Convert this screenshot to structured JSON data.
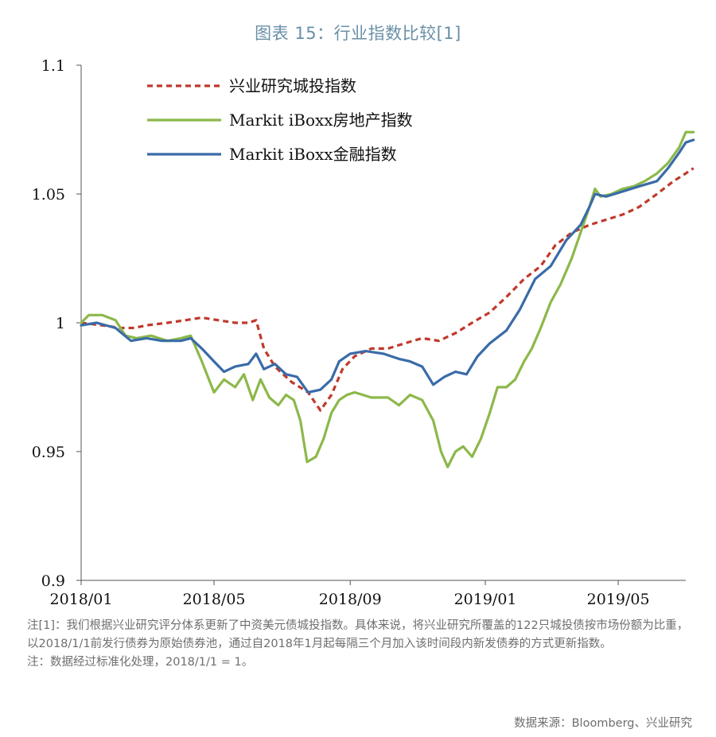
{
  "figure": {
    "title": "图表 15：行业指数比较[1]",
    "note1": "注[1]：我们根据兴业研究评分体系更新了中资美元债城投指数。具体来说，将兴业研究所覆盖的122只城投债按市场份额为比重，以2018/1/1前发行债券为原始债券池，通过自2018年1月起每隔三个月加入该时间段内新发债券的方式更新指数。",
    "note2": "注：数据经过标准化处理，2018/1/1 = 1。",
    "source": "数据来源：Bloomberg、兴业研究"
  },
  "chart_data": {
    "type": "line",
    "x_unit": "month",
    "xlim": [
      "2018-01",
      "2019-07"
    ],
    "x_ticks": [
      "2018-01",
      "2018-05",
      "2018-09",
      "2019-01",
      "2019-05"
    ],
    "x_tick_labels": [
      "2018/01",
      "2018/05",
      "2018/09",
      "2019/01",
      "2019/05"
    ],
    "ylim": [
      0.9,
      1.1
    ],
    "y_ticks": [
      0.9,
      0.95,
      1.0,
      1.05,
      1.1
    ],
    "y_tick_labels": [
      "0.9",
      "0.95",
      "1",
      "1.05",
      "1.1"
    ],
    "grid": false,
    "legend_position": "top-left",
    "series": [
      {
        "name": "兴业研究城投指数",
        "color": "#c0392b",
        "dash": true,
        "points": [
          [
            "2018-01-01",
            1.0
          ],
          [
            "2018-01-20",
            0.999
          ],
          [
            "2018-02-05",
            0.998
          ],
          [
            "2018-02-18",
            0.998
          ],
          [
            "2018-03-01",
            0.999
          ],
          [
            "2018-03-20",
            1.0
          ],
          [
            "2018-04-05",
            1.001
          ],
          [
            "2018-04-20",
            1.002
          ],
          [
            "2018-05-05",
            1.001
          ],
          [
            "2018-05-20",
            1.0
          ],
          [
            "2018-06-01",
            1.0
          ],
          [
            "2018-06-08",
            1.001
          ],
          [
            "2018-06-15",
            0.99
          ],
          [
            "2018-06-25",
            0.983
          ],
          [
            "2018-07-10",
            0.977
          ],
          [
            "2018-07-25",
            0.973
          ],
          [
            "2018-08-05",
            0.966
          ],
          [
            "2018-08-15",
            0.972
          ],
          [
            "2018-08-25",
            0.982
          ],
          [
            "2018-09-05",
            0.987
          ],
          [
            "2018-09-20",
            0.99
          ],
          [
            "2018-10-05",
            0.99
          ],
          [
            "2018-10-20",
            0.992
          ],
          [
            "2018-11-05",
            0.994
          ],
          [
            "2018-11-20",
            0.993
          ],
          [
            "2018-12-05",
            0.996
          ],
          [
            "2018-12-20",
            1.0
          ],
          [
            "2019-01-05",
            1.004
          ],
          [
            "2019-01-20",
            1.01
          ],
          [
            "2019-02-05",
            1.017
          ],
          [
            "2019-02-20",
            1.022
          ],
          [
            "2019-03-05",
            1.03
          ],
          [
            "2019-03-20",
            1.035
          ],
          [
            "2019-04-05",
            1.038
          ],
          [
            "2019-04-20",
            1.04
          ],
          [
            "2019-05-05",
            1.042
          ],
          [
            "2019-05-20",
            1.045
          ],
          [
            "2019-06-05",
            1.05
          ],
          [
            "2019-06-20",
            1.055
          ],
          [
            "2019-07-01",
            1.058
          ],
          [
            "2019-07-08",
            1.06
          ]
        ]
      },
      {
        "name": "Markit iBoxx房地产指数",
        "color": "#8cb84a",
        "dash": false,
        "points": [
          [
            "2018-01-01",
            1.0
          ],
          [
            "2018-01-08",
            1.003
          ],
          [
            "2018-01-20",
            1.003
          ],
          [
            "2018-02-01",
            1.001
          ],
          [
            "2018-02-10",
            0.995
          ],
          [
            "2018-02-20",
            0.994
          ],
          [
            "2018-03-05",
            0.995
          ],
          [
            "2018-03-20",
            0.993
          ],
          [
            "2018-04-01",
            0.994
          ],
          [
            "2018-04-10",
            0.995
          ],
          [
            "2018-04-20",
            0.985
          ],
          [
            "2018-05-01",
            0.973
          ],
          [
            "2018-05-10",
            0.978
          ],
          [
            "2018-05-20",
            0.975
          ],
          [
            "2018-05-28",
            0.98
          ],
          [
            "2018-06-05",
            0.97
          ],
          [
            "2018-06-12",
            0.978
          ],
          [
            "2018-06-20",
            0.971
          ],
          [
            "2018-06-28",
            0.968
          ],
          [
            "2018-07-05",
            0.972
          ],
          [
            "2018-07-12",
            0.97
          ],
          [
            "2018-07-18",
            0.962
          ],
          [
            "2018-07-24",
            0.946
          ],
          [
            "2018-08-01",
            0.948
          ],
          [
            "2018-08-08",
            0.955
          ],
          [
            "2018-08-15",
            0.965
          ],
          [
            "2018-08-22",
            0.97
          ],
          [
            "2018-08-29",
            0.972
          ],
          [
            "2018-09-05",
            0.973
          ],
          [
            "2018-09-20",
            0.971
          ],
          [
            "2018-10-05",
            0.971
          ],
          [
            "2018-10-15",
            0.968
          ],
          [
            "2018-10-25",
            0.972
          ],
          [
            "2018-11-05",
            0.97
          ],
          [
            "2018-11-15",
            0.962
          ],
          [
            "2018-11-22",
            0.95
          ],
          [
            "2018-11-28",
            0.944
          ],
          [
            "2018-12-05",
            0.95
          ],
          [
            "2018-12-12",
            0.952
          ],
          [
            "2018-12-20",
            0.948
          ],
          [
            "2018-12-28",
            0.955
          ],
          [
            "2019-01-05",
            0.965
          ],
          [
            "2019-01-12",
            0.975
          ],
          [
            "2019-01-20",
            0.975
          ],
          [
            "2019-01-28",
            0.978
          ],
          [
            "2019-02-05",
            0.985
          ],
          [
            "2019-02-12",
            0.99
          ],
          [
            "2019-02-20",
            0.998
          ],
          [
            "2019-03-01",
            1.008
          ],
          [
            "2019-03-10",
            1.015
          ],
          [
            "2019-03-20",
            1.025
          ],
          [
            "2019-03-28",
            1.035
          ],
          [
            "2019-04-05",
            1.045
          ],
          [
            "2019-04-10",
            1.052
          ],
          [
            "2019-04-15",
            1.049
          ],
          [
            "2019-04-25",
            1.05
          ],
          [
            "2019-05-05",
            1.052
          ],
          [
            "2019-05-15",
            1.053
          ],
          [
            "2019-05-25",
            1.055
          ],
          [
            "2019-06-05",
            1.058
          ],
          [
            "2019-06-15",
            1.062
          ],
          [
            "2019-06-25",
            1.068
          ],
          [
            "2019-07-01",
            1.074
          ],
          [
            "2019-07-08",
            1.074
          ]
        ]
      },
      {
        "name": "Markit iBoxx金融指数",
        "color": "#3a6ba8",
        "dash": false,
        "points": [
          [
            "2018-01-01",
            0.999
          ],
          [
            "2018-01-15",
            1.0
          ],
          [
            "2018-02-01",
            0.998
          ],
          [
            "2018-02-15",
            0.993
          ],
          [
            "2018-03-01",
            0.994
          ],
          [
            "2018-03-15",
            0.993
          ],
          [
            "2018-04-01",
            0.993
          ],
          [
            "2018-04-10",
            0.994
          ],
          [
            "2018-04-20",
            0.99
          ],
          [
            "2018-05-01",
            0.985
          ],
          [
            "2018-05-10",
            0.981
          ],
          [
            "2018-05-20",
            0.983
          ],
          [
            "2018-06-01",
            0.984
          ],
          [
            "2018-06-08",
            0.988
          ],
          [
            "2018-06-15",
            0.982
          ],
          [
            "2018-06-25",
            0.984
          ],
          [
            "2018-07-05",
            0.98
          ],
          [
            "2018-07-15",
            0.979
          ],
          [
            "2018-07-25",
            0.973
          ],
          [
            "2018-08-05",
            0.974
          ],
          [
            "2018-08-15",
            0.978
          ],
          [
            "2018-08-22",
            0.985
          ],
          [
            "2018-09-01",
            0.988
          ],
          [
            "2018-09-15",
            0.989
          ],
          [
            "2018-10-01",
            0.988
          ],
          [
            "2018-10-15",
            0.986
          ],
          [
            "2018-10-25",
            0.985
          ],
          [
            "2018-11-05",
            0.983
          ],
          [
            "2018-11-15",
            0.976
          ],
          [
            "2018-11-25",
            0.979
          ],
          [
            "2018-12-05",
            0.981
          ],
          [
            "2018-12-15",
            0.98
          ],
          [
            "2018-12-25",
            0.987
          ],
          [
            "2019-01-05",
            0.992
          ],
          [
            "2019-01-20",
            0.997
          ],
          [
            "2019-02-01",
            1.005
          ],
          [
            "2019-02-15",
            1.017
          ],
          [
            "2019-03-01",
            1.022
          ],
          [
            "2019-03-15",
            1.032
          ],
          [
            "2019-03-28",
            1.038
          ],
          [
            "2019-04-05",
            1.045
          ],
          [
            "2019-04-10",
            1.05
          ],
          [
            "2019-04-20",
            1.049
          ],
          [
            "2019-05-05",
            1.051
          ],
          [
            "2019-05-20",
            1.053
          ],
          [
            "2019-06-05",
            1.055
          ],
          [
            "2019-06-15",
            1.06
          ],
          [
            "2019-06-25",
            1.066
          ],
          [
            "2019-07-01",
            1.07
          ],
          [
            "2019-07-08",
            1.071
          ]
        ]
      }
    ]
  }
}
